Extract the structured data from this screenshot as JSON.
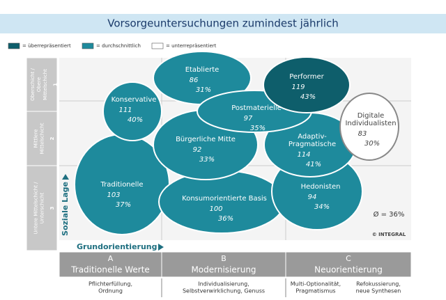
{
  "header": {
    "title": "Vorsorgeuntersuchungen zumindest jährlich"
  },
  "legend": [
    {
      "label": "= überrepräsentiert",
      "color": "#0e5e6b"
    },
    {
      "label": "= durchschnittlich",
      "color": "#1e8a9c"
    },
    {
      "label": "= unterrepräsentiert",
      "color": "#ffffff"
    }
  ],
  "social_axis": {
    "label": "Soziale Lage",
    "rows": [
      {
        "lines": [
          "Oberschicht /",
          "Obere",
          "Mittelschicht"
        ],
        "number": "1"
      },
      {
        "lines": [
          "Mittlere",
          "Mittelschicht"
        ],
        "number": "2"
      },
      {
        "lines": [
          "Untere Mittelschicht /",
          "Unterschicht"
        ],
        "number": "3"
      }
    ]
  },
  "value_axis": {
    "label": "Grundorientierung",
    "columns": [
      {
        "letter": "A",
        "name": "Traditionelle Werte",
        "notes": [
          "Pflichterfüllung,",
          "Ordnung"
        ]
      },
      {
        "letter": "B",
        "name": "Modernisierung",
        "notes": [
          "Individualisierung,",
          "Selbstverwirklichung, Genuss"
        ]
      },
      {
        "letter": "C",
        "name": "Neuorientierung",
        "notes": [
          "Multi-Optionalität,",
          "Pragmatismus"
        ],
        "notes2": [
          "Refokussierung,",
          "neue Synthesen"
        ]
      }
    ]
  },
  "nodes": [
    {
      "label": [
        "Traditionelle"
      ],
      "index": 103,
      "share": "37%",
      "color": "#1e8a9c"
    },
    {
      "label": [
        "Konsumorientierte Basis"
      ],
      "index": 100,
      "share": "36%",
      "color": "#1e8a9c"
    },
    {
      "label": [
        "Hedonisten"
      ],
      "index": 94,
      "share": "34%",
      "color": "#1e8a9c"
    },
    {
      "label": [
        "Bürgerliche Mitte"
      ],
      "index": 92,
      "share": "33%",
      "color": "#1e8a9c"
    },
    {
      "label": [
        "Adaptiv-",
        "Pragmatische"
      ],
      "index": 114,
      "share": "41%",
      "color": "#1e8a9c"
    },
    {
      "label": [
        "Etablierte"
      ],
      "index": 86,
      "share": "31%",
      "color": "#1e8a9c"
    },
    {
      "label": [
        "Konservative"
      ],
      "index": 111,
      "share": "40%",
      "color": "#1e8a9c"
    },
    {
      "label": [
        "Postmaterielle"
      ],
      "index": 97,
      "share": "35%",
      "color": "#1e8a9c"
    },
    {
      "label": [
        "Performer"
      ],
      "index": 119,
      "share": "43%",
      "color": "#0e5e6b"
    },
    {
      "label": [
        "Digitale",
        "Individualisten"
      ],
      "index": 83,
      "share": "30%",
      "color": "#ffffff"
    }
  ],
  "average": "Ø = 36%",
  "copyright": "© INTEGRAL"
}
